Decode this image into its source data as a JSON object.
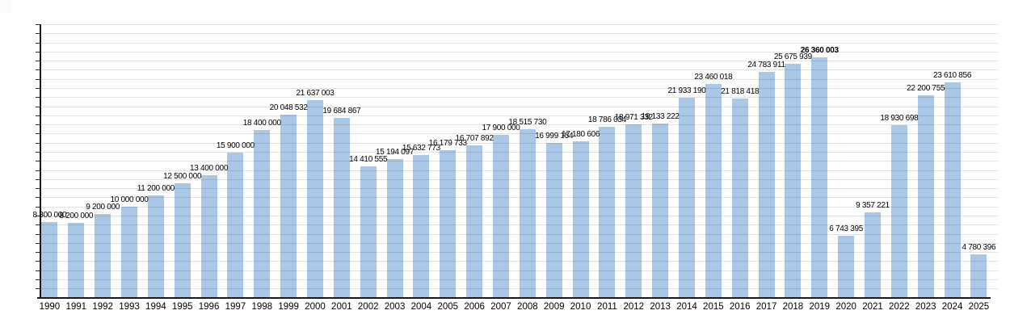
{
  "chart_data": {
    "type": "bar",
    "title": "",
    "xlabel": "",
    "ylabel": "",
    "legend_position": "none",
    "grid": "horizontal",
    "gridline_interval": 1000000,
    "ylim": [
      0,
      30000000
    ],
    "y_axis_tick_labels": "none (ticks only, unlabeled)",
    "categories": [
      "1990",
      "1991",
      "1992",
      "1993",
      "1994",
      "1995",
      "1996",
      "1997",
      "1998",
      "1999",
      "2000",
      "2001",
      "2002",
      "2003",
      "2004",
      "2005",
      "2006",
      "2007",
      "2008",
      "2009",
      "2010",
      "2011",
      "2012",
      "2013",
      "2014",
      "2015",
      "2016",
      "2017",
      "2018",
      "2019",
      "2020",
      "2021",
      "2022",
      "2023",
      "2024",
      "2025"
    ],
    "values": [
      8300000,
      8200000,
      9200000,
      10000000,
      11200000,
      12500000,
      13400000,
      15900000,
      18400000,
      20048532,
      21637003,
      19684867,
      14410555,
      15194097,
      15632773,
      16179733,
      16707892,
      17900000,
      18515730,
      16999154,
      17180606,
      18786034,
      18971332,
      19133222,
      21933190,
      23460018,
      21818418,
      24783911,
      25675939,
      26360003,
      6743395,
      9357221,
      18930698,
      22200755,
      23610856,
      4780396
    ],
    "value_labels": [
      "8 300 000",
      "8 200 000",
      "9 200 000",
      "10 000 000",
      "11 200 000",
      "12 500 000",
      "13 400 000",
      "15 900 000",
      "18 400 000",
      "20 048 532",
      "21 637 003",
      "19 684 867",
      "14 410 555",
      "15 194 097",
      "15 632 773",
      "16 179 733",
      "16 707 892",
      "17 900 000",
      "18 515 730",
      "16 999 154",
      "17 180 606",
      "18 786 034",
      "18 971 332",
      "19 133 222",
      "21 933 190",
      "23 460 018",
      "21 818 418",
      "24 783 911",
      "25 675 939",
      "26 360 003",
      "6 743 395",
      "9 357 221",
      "18 930 698",
      "22 200 755",
      "23 610 856",
      "4 780 396"
    ],
    "emphasized_category": "2019",
    "colors": {
      "bar": "#a9c7e6",
      "gridline": "#e0e0e0",
      "axis": "#1a1a1a",
      "text": "#000000",
      "background": "#ffffff"
    }
  }
}
